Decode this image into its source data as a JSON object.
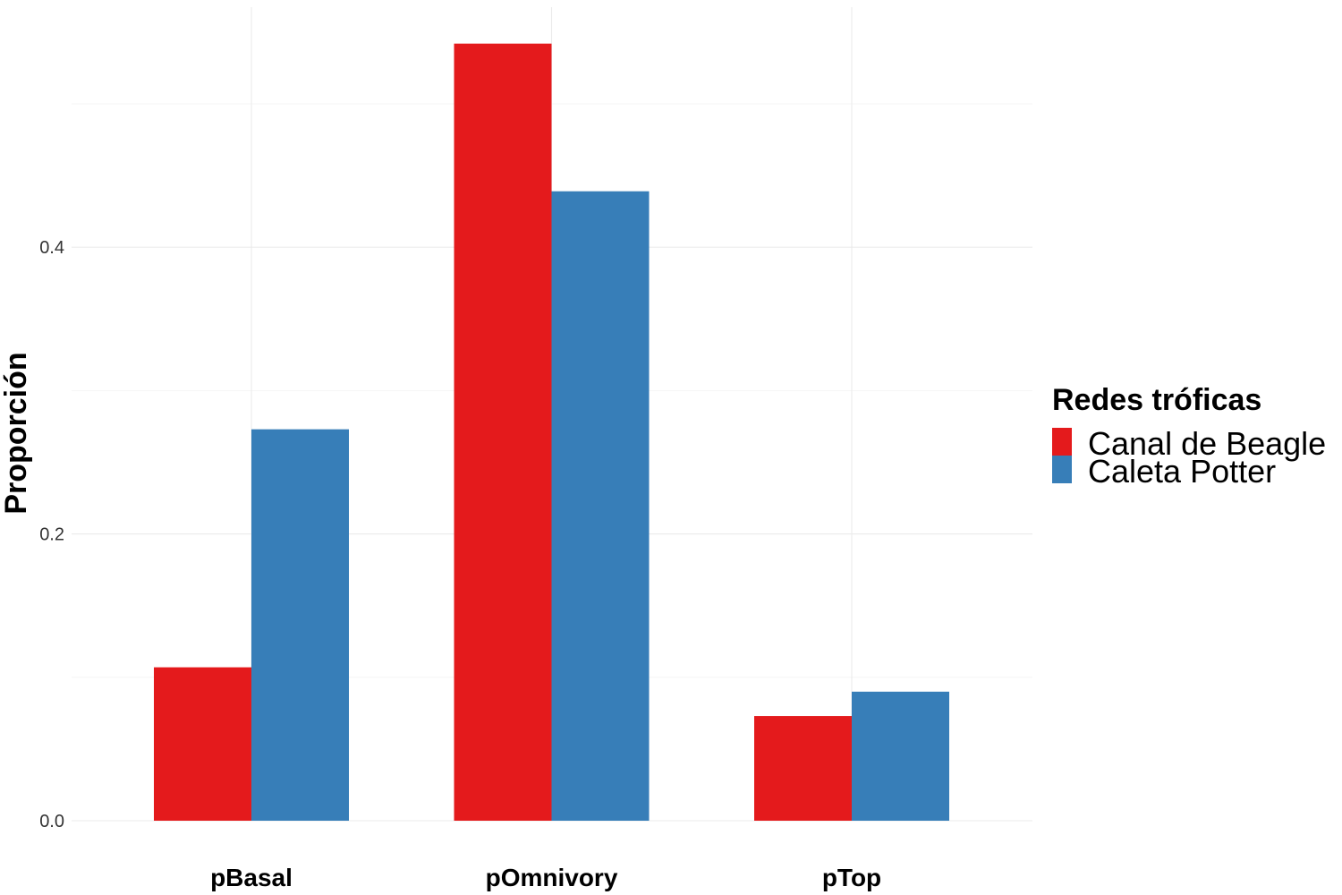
{
  "chart_data": {
    "type": "bar",
    "title": "",
    "xlabel": "",
    "ylabel": "Proporción",
    "categories": [
      "pBasal",
      "pOmnivory",
      "pTop"
    ],
    "series": [
      {
        "name": "Canal de Beagle",
        "color": "#E41A1C",
        "values": [
          0.107,
          0.542,
          0.073
        ]
      },
      {
        "name": "Caleta Potter",
        "color": "#377EB8",
        "values": [
          0.273,
          0.439,
          0.09
        ]
      }
    ],
    "ylim": [
      0,
      0.57
    ],
    "yticks": [
      0.0,
      0.2,
      0.4
    ],
    "ytick_labels": [
      "0.0",
      "0.2",
      "0.4"
    ],
    "grid": true,
    "legend": {
      "title": "Redes tróficas",
      "position": "right"
    }
  }
}
